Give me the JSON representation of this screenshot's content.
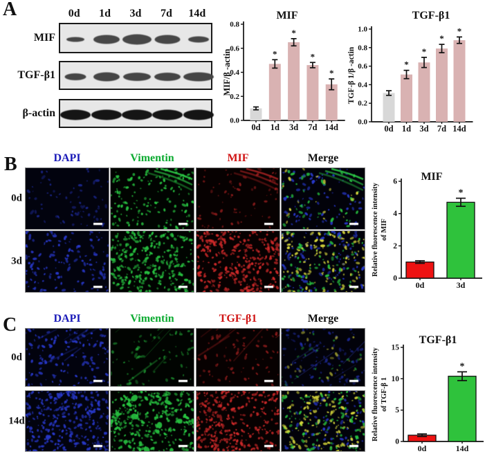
{
  "panels": {
    "A": {
      "label": "A",
      "blot": {
        "lane_headers": [
          "0d",
          "1d",
          "3d",
          "7d",
          "14d"
        ],
        "rows": [
          {
            "label": "MIF",
            "band_color": "#474747",
            "bands": [
              [
                26,
                7
              ],
              [
                38,
                13
              ],
              [
                42,
                15
              ],
              [
                37,
                13
              ],
              [
                30,
                9
              ]
            ]
          },
          {
            "label": "TGF-β1",
            "band_color": "#454545",
            "bands": [
              [
                31,
                10
              ],
              [
                38,
                13
              ],
              [
                40,
                12
              ],
              [
                38,
                12
              ],
              [
                44,
                13
              ]
            ]
          },
          {
            "label": "β-actin",
            "band_color": "#151515",
            "bands": [
              [
                44,
                15
              ],
              [
                44,
                15
              ],
              [
                44,
                15
              ],
              [
                44,
                15
              ],
              [
                44,
                15
              ]
            ]
          }
        ]
      }
    },
    "B": {
      "label": "B",
      "col_headers": [
        {
          "text": "DAPI",
          "color": "#1a1ab8"
        },
        {
          "text": "Vimentin",
          "color": "#0cab31"
        },
        {
          "text": "MIF",
          "color": "#d01414"
        },
        {
          "text": "Merge",
          "color": "#101010"
        }
      ],
      "rows": [
        {
          "label": "0d",
          "tiles": [
            {
              "channel": "dapi",
              "density": "sparse",
              "dim": true
            },
            {
              "channel": "green",
              "density": "medium",
              "corner_streak": true
            },
            {
              "channel": "red",
              "density": "sparse",
              "dim": true,
              "corner_streak": true
            },
            {
              "channel": "merge",
              "density": "medium",
              "mix": [
                0.45,
                0.38,
                0.17
              ],
              "corner_streak": true
            }
          ]
        },
        {
          "label": "3d",
          "tiles": [
            {
              "channel": "dapi",
              "density": "medium"
            },
            {
              "channel": "green",
              "density": "dense"
            },
            {
              "channel": "red",
              "density": "dense"
            },
            {
              "channel": "merge",
              "density": "dense",
              "mix": [
                0.34,
                0.24,
                0.42
              ]
            }
          ]
        }
      ]
    },
    "C": {
      "label": "C",
      "col_headers": [
        {
          "text": "DAPI",
          "color": "#1a1ab8"
        },
        {
          "text": "Vimentin",
          "color": "#0cab31"
        },
        {
          "text": "TGF-β1",
          "color": "#d01414"
        },
        {
          "text": "Merge",
          "color": "#101010"
        }
      ],
      "rows": [
        {
          "label": "0d",
          "tiles": [
            {
              "channel": "dapi",
              "density": "medium",
              "fibers": true
            },
            {
              "channel": "green",
              "density": "sparse",
              "dim": true,
              "fibers": true
            },
            {
              "channel": "red",
              "density": "sparse",
              "dim": true,
              "fibers": true
            },
            {
              "channel": "merge",
              "density": "medium",
              "dim": true,
              "mix": [
                0.72,
                0.14,
                0.14
              ],
              "fibers": true
            }
          ]
        },
        {
          "label": "14d",
          "tiles": [
            {
              "channel": "dapi",
              "density": "dense"
            },
            {
              "channel": "green",
              "density": "dense",
              "blobs": true
            },
            {
              "channel": "red",
              "density": "dense"
            },
            {
              "channel": "merge",
              "density": "dense",
              "mix": [
                0.22,
                0.28,
                0.5
              ]
            }
          ]
        }
      ]
    }
  },
  "channels": {
    "dapi": {
      "bg": "#02030e",
      "dot": "#2838c8"
    },
    "green": {
      "bg": "#010401",
      "dot": "#28c341"
    },
    "red": {
      "bg": "#070101",
      "dot": "#d02a2a"
    },
    "merge": {
      "bg": "#02020a",
      "palette": [
        "#2838c8",
        "#28c341",
        "#d8d83c"
      ]
    }
  },
  "chart_data": [
    {
      "id": "wb-mif",
      "type": "bar",
      "title": "MIF",
      "ylabel": "MIF/β -actin",
      "categories": [
        "0d",
        "1d",
        "3d",
        "7d",
        "14d"
      ],
      "values": [
        0.1,
        0.47,
        0.65,
        0.46,
        0.3
      ],
      "errors": [
        0.012,
        0.035,
        0.03,
        0.022,
        0.045
      ],
      "significant": [
        false,
        true,
        true,
        true,
        true
      ],
      "sig_symbol": "*",
      "bar_colors": [
        "#d8d8d8",
        "#d9b2b2",
        "#d9b2b2",
        "#d9b2b2",
        "#d9b2b2"
      ],
      "ylim": [
        0,
        0.8
      ],
      "yticks": [
        0,
        0.2,
        0.4,
        0.6,
        0.8
      ],
      "grid": false,
      "legend": "none"
    },
    {
      "id": "wb-tgfb1",
      "type": "bar",
      "title": "TGF-β1",
      "ylabel": "TGF-β 1/β -actin",
      "categories": [
        "0d",
        "1d",
        "3d",
        "7d",
        "14d"
      ],
      "values": [
        0.31,
        0.51,
        0.64,
        0.79,
        0.88
      ],
      "errors": [
        0.025,
        0.045,
        0.055,
        0.045,
        0.035
      ],
      "significant": [
        false,
        true,
        true,
        true,
        true
      ],
      "sig_symbol": "*",
      "bar_colors": [
        "#d8d8d8",
        "#d9b2b2",
        "#d9b2b2",
        "#d9b2b2",
        "#d9b2b2"
      ],
      "ylim": [
        0,
        1.0
      ],
      "yticks": [
        0,
        0.2,
        0.4,
        0.6,
        0.8,
        1.0
      ],
      "grid": false,
      "legend": "none"
    },
    {
      "id": "if-mif",
      "type": "bar",
      "title": "MIF",
      "ylabel_lines": [
        "Relative fluorescence intensity",
        "of MIF"
      ],
      "categories": [
        "0d",
        "3d"
      ],
      "values": [
        1.0,
        4.7
      ],
      "errors": [
        0.08,
        0.25
      ],
      "significant": [
        false,
        true
      ],
      "sig_symbol": "*",
      "bar_colors": [
        "#ee1212",
        "#2fc23c"
      ],
      "ylim": [
        0,
        6
      ],
      "yticks": [
        0,
        2,
        4,
        6
      ],
      "grid": false,
      "legend": "none"
    },
    {
      "id": "if-tgfb1",
      "type": "bar",
      "title": "TGF-β1",
      "ylabel_lines": [
        "Relative fluorescence intensity",
        "of TGF-β 1"
      ],
      "categories": [
        "0d",
        "14d"
      ],
      "values": [
        1.0,
        10.4
      ],
      "errors": [
        0.2,
        0.7
      ],
      "significant": [
        false,
        true
      ],
      "sig_symbol": "*",
      "bar_colors": [
        "#ee1212",
        "#2fc23c"
      ],
      "ylim": [
        0,
        15
      ],
      "yticks": [
        0,
        5,
        10,
        15
      ],
      "grid": false,
      "legend": "none"
    }
  ]
}
